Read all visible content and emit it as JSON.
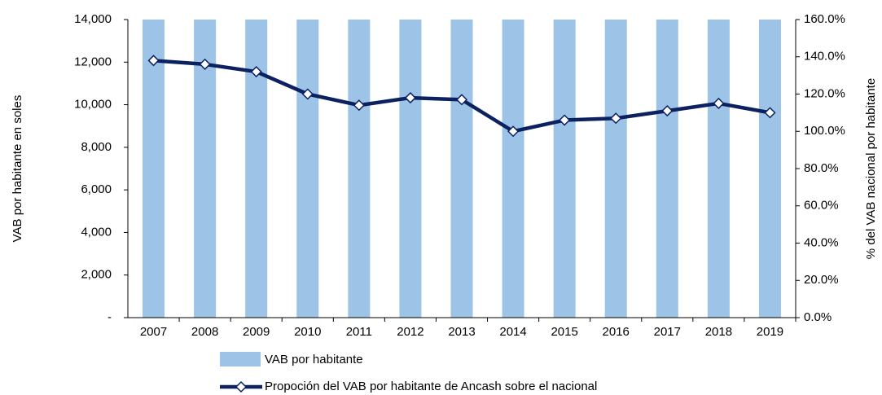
{
  "chart_data": {
    "type": "bar",
    "categories": [
      "2007",
      "2008",
      "2009",
      "2010",
      "2011",
      "2012",
      "2013",
      "2014",
      "2015",
      "2016",
      "2017",
      "2018",
      "2019"
    ],
    "ylabel": "VAB por habitante en soles",
    "y2label": "% del VAB nacional por habitante",
    "ylim": [
      0,
      14000
    ],
    "yticks": [
      {
        "value": 0,
        "label": "-"
      },
      {
        "value": 2000,
        "label": "2,000"
      },
      {
        "value": 4000,
        "label": "4,000"
      },
      {
        "value": 6000,
        "label": "6,000"
      },
      {
        "value": 8000,
        "label": "8,000"
      },
      {
        "value": 10000,
        "label": "10,000"
      },
      {
        "value": 12000,
        "label": "12,000"
      },
      {
        "value": 14000,
        "label": "14,000"
      }
    ],
    "y2lim": [
      0,
      160
    ],
    "y2ticks": [
      {
        "value": 0,
        "label": "0.0%"
      },
      {
        "value": 20,
        "label": "20.0%"
      },
      {
        "value": 40,
        "label": "40.0%"
      },
      {
        "value": 60,
        "label": "60.0%"
      },
      {
        "value": 80,
        "label": "80.0%"
      },
      {
        "value": 100,
        "label": "100.0%"
      },
      {
        "value": 120,
        "label": "120.0%"
      },
      {
        "value": 140,
        "label": "140.0%"
      },
      {
        "value": 160,
        "label": "160.0%"
      }
    ],
    "series": [
      {
        "name": "VAB por habitante",
        "type": "bar",
        "color": "#9dc3e6",
        "values": [
          14000,
          14000,
          14000,
          14000,
          14000,
          14000,
          14000,
          14000,
          14000,
          14000,
          14000,
          14000,
          14000
        ]
      },
      {
        "name": "Propoción del VAB por habitante de Ancash sobre el nacional",
        "type": "line",
        "axis": "y2",
        "color": "#0b2160",
        "values": [
          138,
          136,
          132,
          120,
          114,
          118,
          117,
          100,
          106,
          107,
          111,
          115,
          110
        ]
      }
    ]
  }
}
